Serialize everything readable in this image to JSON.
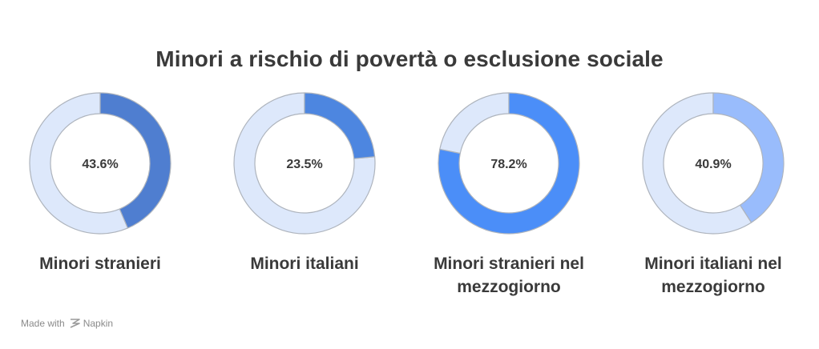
{
  "title": "Minori a rischio di povertà o esclusione sociale",
  "footer": {
    "made_with": "Made with",
    "brand": "Napkin"
  },
  "colors": {
    "track": "#dde8fb",
    "stroke": "#aeb4bd"
  },
  "chart_data": [
    {
      "type": "pie",
      "label_lines": [
        "Minori stranieri"
      ],
      "value": 43.6,
      "value_label": "43.6%",
      "color": "#4f7ed0"
    },
    {
      "type": "pie",
      "label_lines": [
        "Minori italiani"
      ],
      "value": 23.5,
      "value_label": "23.5%",
      "color": "#4d86e0"
    },
    {
      "type": "pie",
      "label_lines": [
        "Minori stranieri nel",
        "mezzogiorno"
      ],
      "value": 78.2,
      "value_label": "78.2%",
      "color": "#4b8ef8"
    },
    {
      "type": "pie",
      "label_lines": [
        "Minori italiani nel",
        "mezzogiorno"
      ],
      "value": 40.9,
      "value_label": "40.9%",
      "color": "#99bcfc"
    }
  ]
}
